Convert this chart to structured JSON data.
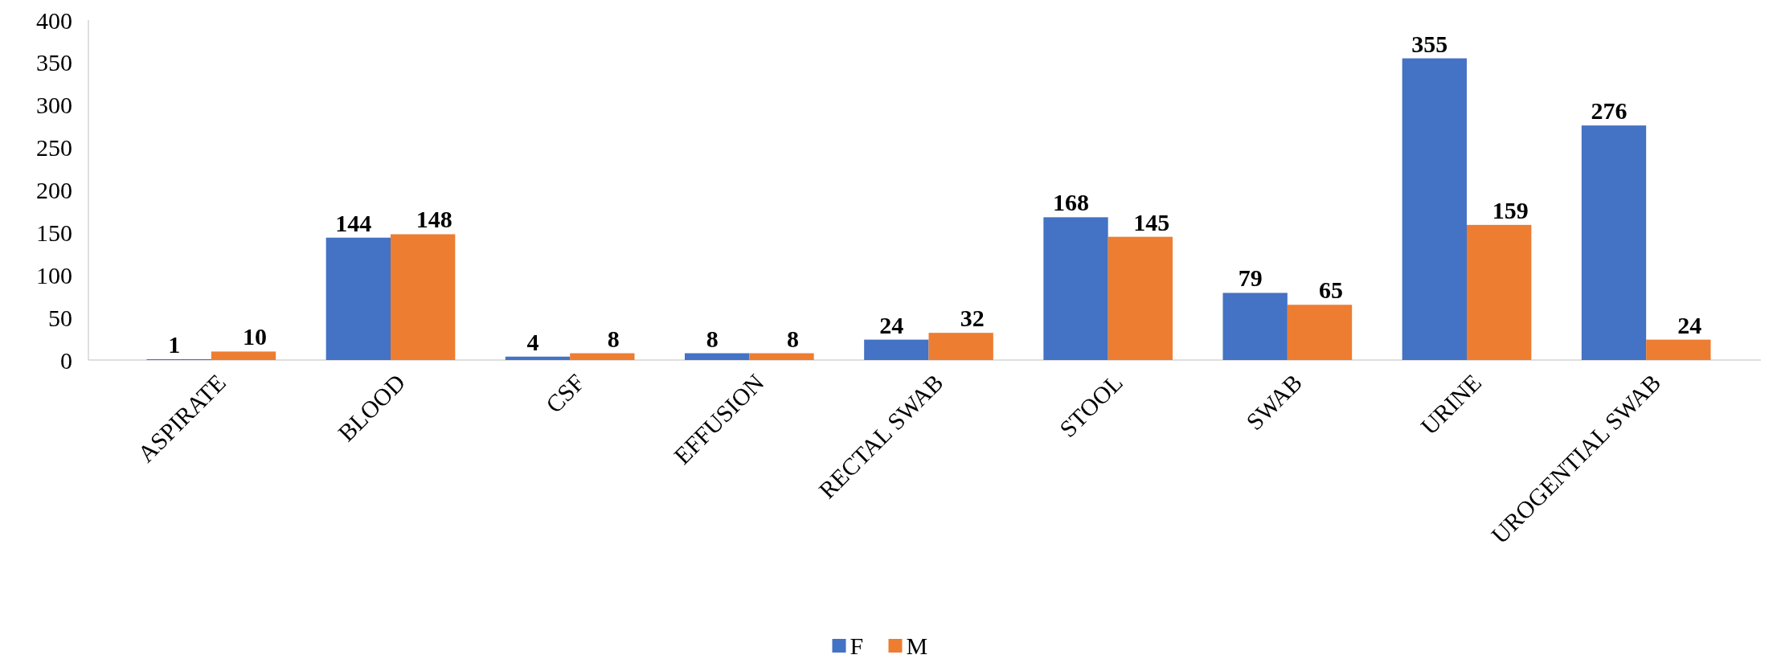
{
  "chart_data": {
    "type": "bar",
    "categories": [
      "ASPIRATE",
      "BLOOD",
      "CSF",
      "EFFUSION",
      "RECTAL SWAB",
      "STOOL",
      "SWAB",
      "URINE",
      "UROGENTIAL SWAB"
    ],
    "series": [
      {
        "name": "F",
        "color": "#4472c4",
        "values": [
          1,
          144,
          4,
          8,
          24,
          168,
          79,
          355,
          276
        ]
      },
      {
        "name": "M",
        "color": "#ed7d31",
        "values": [
          10,
          148,
          8,
          8,
          32,
          145,
          65,
          159,
          24
        ]
      }
    ],
    "ylim": [
      0,
      400
    ],
    "yticks": [
      0,
      50,
      100,
      150,
      200,
      250,
      300,
      350,
      400
    ],
    "grid": false,
    "legend": "bottom",
    "data_labels": true
  }
}
